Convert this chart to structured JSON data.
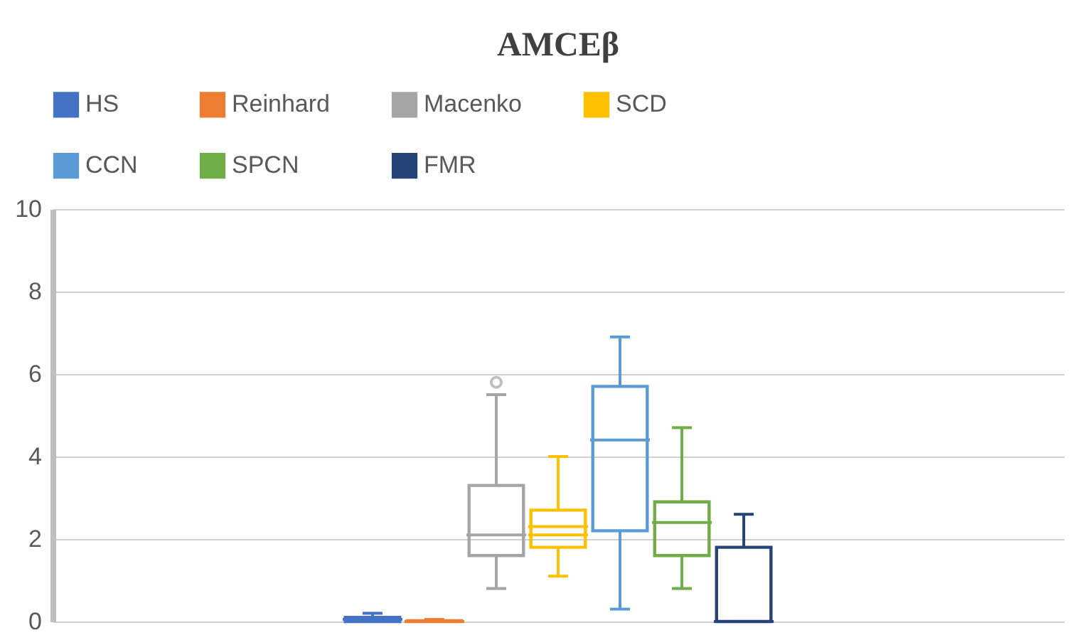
{
  "chart_data": {
    "type": "box",
    "title": "AMCEβ",
    "categories": [
      null
    ],
    "series": [
      {
        "name": "HS",
        "color": "#4472c4",
        "boxes": [
          {
            "low": 0,
            "q1": 0,
            "median": 0.05,
            "q3": 0.1,
            "high": 0.2
          }
        ]
      },
      {
        "name": "Reinhard",
        "color": "#ed7d31",
        "boxes": [
          {
            "low": 0,
            "q1": 0,
            "median": 0,
            "q3": 0.02,
            "high": 0.05
          }
        ]
      },
      {
        "name": "Macenko",
        "color": "#a5a5a5",
        "boxes": [
          {
            "low": 0.8,
            "q1": 1.6,
            "median": 2.1,
            "q3": 3.3,
            "high": 5.5,
            "outliers": [
              5.8
            ]
          }
        ]
      },
      {
        "name": "SCD",
        "color": "#ffc000",
        "boxes": [
          {
            "low": 1.1,
            "q1": 1.8,
            "median": 2.3,
            "q3": 2.7,
            "high": 4.0,
            "mean": 2.1
          }
        ]
      },
      {
        "name": "CCN",
        "color": "#5b9bd5",
        "boxes": [
          {
            "low": 0.3,
            "q1": 2.2,
            "median": 4.4,
            "q3": 5.7,
            "high": 6.9
          }
        ]
      },
      {
        "name": "SPCN",
        "color": "#70ad47",
        "boxes": [
          {
            "low": 0.8,
            "q1": 1.6,
            "median": 2.4,
            "q3": 2.9,
            "high": 4.7
          }
        ]
      },
      {
        "name": "FMR",
        "color": "#264478",
        "boxes": [
          {
            "low": 0,
            "q1": 0,
            "median": 0,
            "q3": 1.8,
            "high": 2.6
          }
        ]
      }
    ],
    "ylim": [
      0,
      10
    ],
    "yticks": [
      0,
      2,
      4,
      6,
      8,
      10
    ],
    "grid": "y",
    "legend": "top",
    "tick_labels": "y"
  }
}
